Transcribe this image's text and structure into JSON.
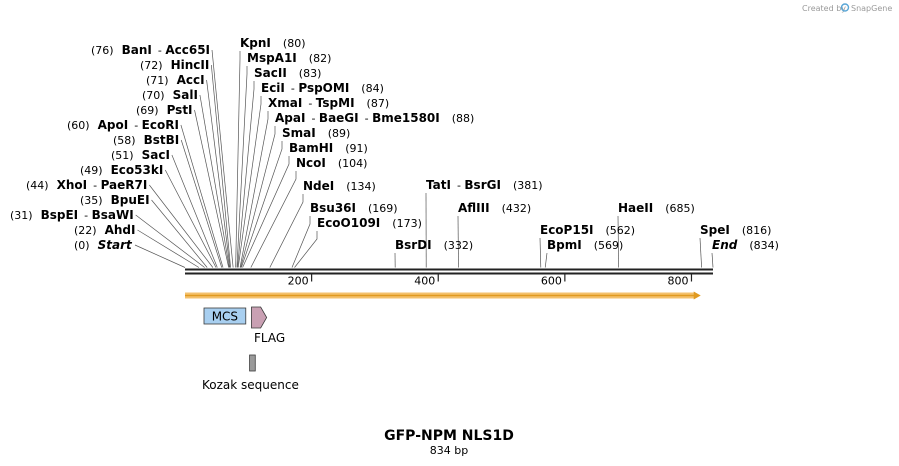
{
  "credit": {
    "text": "Created by",
    "brand": "SnapGene"
  },
  "map": {
    "title": "GFP-NPM NLS1D",
    "length_label": "834 bp",
    "length": 834,
    "ticks": [
      {
        "pos": 200,
        "label": "200"
      },
      {
        "pos": 400,
        "label": "400"
      },
      {
        "pos": 600,
        "label": "600"
      },
      {
        "pos": 800,
        "label": "800"
      }
    ],
    "orf": {
      "start": 0,
      "end": 813,
      "color": "#f4c16c",
      "edge_color": "#e09a20"
    },
    "features": [
      {
        "id": "mcs",
        "label": "MCS",
        "start": 30,
        "end": 96,
        "kind": "box",
        "color": "#a8cff0",
        "label_position": "inside"
      },
      {
        "id": "flag",
        "label": "FLAG",
        "start": 105,
        "end": 129,
        "kind": "arrow",
        "color": "#c9a0b3",
        "label_position": "below"
      },
      {
        "id": "kozak",
        "label": "Kozak sequence",
        "start": 102,
        "end": 111,
        "kind": "box",
        "color": "#9a9a9a",
        "label_position": "below"
      }
    ]
  },
  "sites": [
    {
      "names": [
        "Start"
      ],
      "pos": "(0)",
      "italic": true,
      "bp": 0
    },
    {
      "names": [
        "AhdI"
      ],
      "pos": "(22)",
      "bp": 22
    },
    {
      "names": [
        "BspEI",
        "BsaWI"
      ],
      "pos": "(31)",
      "bp": 31
    },
    {
      "names": [
        "BpuEI"
      ],
      "pos": "(35)",
      "bp": 35
    },
    {
      "names": [
        "XhoI",
        "PaeR7I"
      ],
      "pos": "(44)",
      "bp": 44
    },
    {
      "names": [
        "Eco53kI"
      ],
      "pos": "(49)",
      "bp": 49
    },
    {
      "names": [
        "SacI"
      ],
      "pos": "(51)",
      "bp": 51
    },
    {
      "names": [
        "BstBI"
      ],
      "pos": "(58)",
      "bp": 58
    },
    {
      "names": [
        "ApoI",
        "EcoRI"
      ],
      "pos": "(60)",
      "bp": 60
    },
    {
      "names": [
        "PstI"
      ],
      "pos": "(69)",
      "bp": 69
    },
    {
      "names": [
        "SalI"
      ],
      "pos": "(70)",
      "bp": 70
    },
    {
      "names": [
        "AccI"
      ],
      "pos": "(71)",
      "bp": 71
    },
    {
      "names": [
        "HincII"
      ],
      "pos": "(72)",
      "bp": 72
    },
    {
      "names": [
        "BanI",
        "Acc65I"
      ],
      "pos": "(76)",
      "bp": 76
    },
    {
      "names": [
        "KpnI"
      ],
      "pos": "(80)",
      "bp": 80
    },
    {
      "names": [
        "MspA1I"
      ],
      "pos": "(82)",
      "bp": 82
    },
    {
      "names": [
        "SacII"
      ],
      "pos": "(83)",
      "bp": 83
    },
    {
      "names": [
        "EciI",
        "PspOMI"
      ],
      "pos": "(84)",
      "bp": 84
    },
    {
      "names": [
        "XmaI",
        "TspMI"
      ],
      "pos": "(87)",
      "bp": 87
    },
    {
      "names": [
        "ApaI",
        "BaeGI",
        "Bme1580I"
      ],
      "pos": "(88)",
      "bp": 88
    },
    {
      "names": [
        "SmaI"
      ],
      "pos": "(89)",
      "bp": 89
    },
    {
      "names": [
        "BamHI"
      ],
      "pos": "(91)",
      "bp": 91
    },
    {
      "names": [
        "NcoI"
      ],
      "pos": "(104)",
      "bp": 104
    },
    {
      "names": [
        "NdeI"
      ],
      "pos": "(134)",
      "bp": 134
    },
    {
      "names": [
        "Bsu36I"
      ],
      "pos": "(169)",
      "bp": 169
    },
    {
      "names": [
        "EcoO109I"
      ],
      "pos": "(173)",
      "bp": 173
    },
    {
      "names": [
        "BsrDI"
      ],
      "pos": "(332)",
      "bp": 332
    },
    {
      "names": [
        "TatI",
        "BsrGI"
      ],
      "pos": "(381)",
      "bp": 381
    },
    {
      "names": [
        "AflIII"
      ],
      "pos": "(432)",
      "bp": 432
    },
    {
      "names": [
        "EcoP15I"
      ],
      "pos": "(562)",
      "bp": 562
    },
    {
      "names": [
        "BpmI"
      ],
      "pos": "(569)",
      "bp": 569
    },
    {
      "names": [
        "HaeII"
      ],
      "pos": "(685)",
      "bp": 685
    },
    {
      "names": [
        "SpeI"
      ],
      "pos": "(816)",
      "bp": 816
    },
    {
      "names": [
        "End"
      ],
      "pos": "(834)",
      "italic": true,
      "bp": 834
    }
  ]
}
